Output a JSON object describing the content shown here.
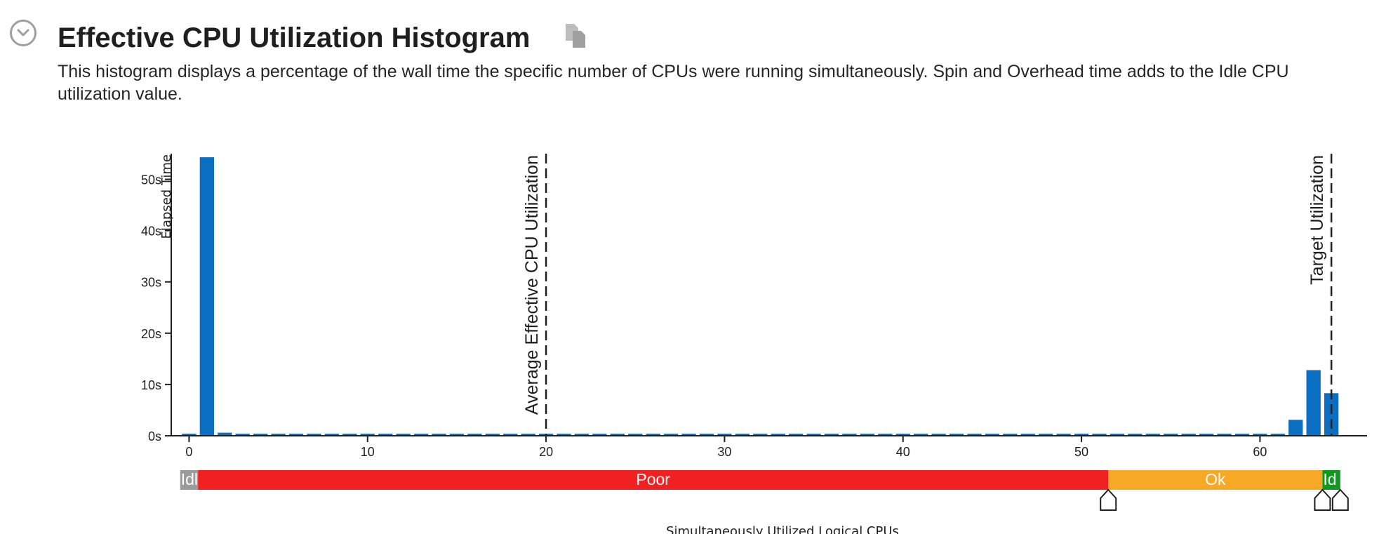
{
  "section": {
    "title": "Effective CPU Utilization Histogram",
    "description": "This histogram displays a percentage of the wall time the specific number of CPUs were running simultaneously. Spin and Overhead time adds to the Idle CPU utilization value.",
    "collapse_icon": "chevron-down-circle-icon",
    "copy_icon": "copy-icon"
  },
  "chart_data": {
    "type": "bar",
    "ylabel": "Elapsed Time",
    "xlabel": "Simultaneously Utilized Logical CPUs",
    "ylim": [
      0,
      55
    ],
    "xlim": [
      -1,
      66
    ],
    "y_ticks": [
      {
        "value": 0,
        "label": "0s"
      },
      {
        "value": 10,
        "label": "10s"
      },
      {
        "value": 20,
        "label": "20s"
      },
      {
        "value": 30,
        "label": "30s"
      },
      {
        "value": 40,
        "label": "40s"
      },
      {
        "value": 50,
        "label": "50s"
      }
    ],
    "x_ticks": [
      0,
      10,
      20,
      30,
      40,
      50,
      60
    ],
    "bar_color": "#0a6fc2",
    "x": [
      0,
      1,
      2,
      3,
      4,
      5,
      6,
      7,
      8,
      9,
      10,
      11,
      12,
      13,
      14,
      15,
      16,
      17,
      18,
      19,
      20,
      21,
      22,
      23,
      24,
      25,
      26,
      27,
      28,
      29,
      30,
      31,
      32,
      33,
      34,
      35,
      36,
      37,
      38,
      39,
      40,
      41,
      42,
      43,
      44,
      45,
      46,
      47,
      48,
      49,
      50,
      51,
      52,
      53,
      54,
      55,
      56,
      57,
      58,
      59,
      60,
      61,
      62,
      63,
      64
    ],
    "values": [
      0.4,
      54.3,
      0.6,
      0.4,
      0.4,
      0.4,
      0.4,
      0.4,
      0.4,
      0.4,
      0.4,
      0.4,
      0.4,
      0.4,
      0.4,
      0.4,
      0.4,
      0.4,
      0.4,
      0.4,
      0.4,
      0.4,
      0.4,
      0.4,
      0.4,
      0.4,
      0.4,
      0.4,
      0.4,
      0.4,
      0.4,
      0.4,
      0.4,
      0.4,
      0.4,
      0.4,
      0.4,
      0.4,
      0.4,
      0.4,
      0.4,
      0.4,
      0.4,
      0.4,
      0.4,
      0.4,
      0.4,
      0.4,
      0.4,
      0.4,
      0.4,
      0.4,
      0.4,
      0.4,
      0.4,
      0.4,
      0.4,
      0.4,
      0.4,
      0.4,
      0.4,
      0.4,
      3.1,
      12.8,
      8.3
    ],
    "reference_lines": [
      {
        "label": "Average Effective CPU Utilization",
        "x": 20
      },
      {
        "label": "Target Utilization",
        "x": 64
      }
    ],
    "utilization_bands": [
      {
        "label": "Idl",
        "start": -0.5,
        "end": 0.5,
        "color": "#9b9b9b"
      },
      {
        "label": "Poor",
        "start": 0.5,
        "end": 51.5,
        "color": "#f22121"
      },
      {
        "label": "Ok",
        "start": 51.5,
        "end": 63.5,
        "color": "#f9a825"
      },
      {
        "label": "Id",
        "start": 63.5,
        "end": 64.5,
        "color": "#0e9a1e"
      }
    ],
    "thresholds": [
      51.5,
      63.5,
      64.5
    ]
  }
}
